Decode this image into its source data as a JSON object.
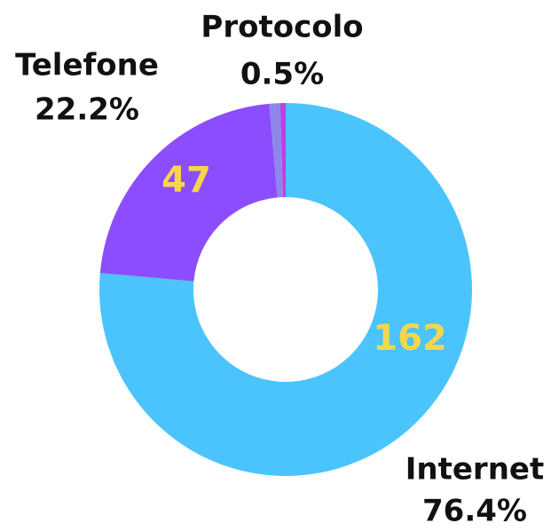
{
  "chart_data": {
    "type": "donut",
    "categories": [
      "Internet",
      "Telefone",
      null,
      "Protocolo"
    ],
    "values": [
      162,
      47,
      2,
      1
    ],
    "percent_labels": [
      "76.4%",
      "22.2%",
      null,
      "0.5%"
    ],
    "colors": [
      "#4bc4fd",
      "#8c4dff",
      "#8f86ea",
      "#c03fe6"
    ],
    "value_label_color": "#f7d54c"
  }
}
